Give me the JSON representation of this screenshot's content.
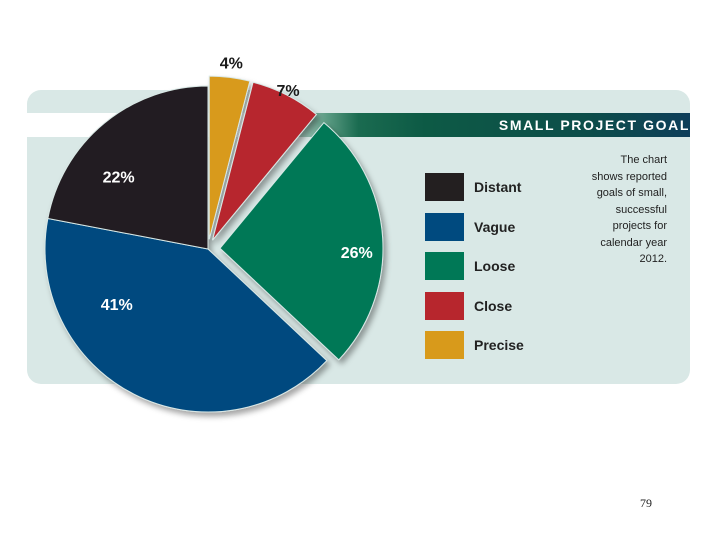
{
  "chart_data": {
    "type": "pie",
    "title": "SMALL PROJECT GOAL",
    "categories": [
      "Distant",
      "Vague",
      "Loose",
      "Close",
      "Precise"
    ],
    "values": [
      22,
      41,
      26,
      7,
      4
    ],
    "value_labels": [
      "22%",
      "41%",
      "26%",
      "7%",
      "4%"
    ],
    "colors": {
      "Distant": "#231f20",
      "Vague": "#004a7f",
      "Loose": "#007856",
      "Close": "#b7262d",
      "Precise": "#d89a1b"
    },
    "legend_position": "center-right",
    "exploded_slices": [
      "Loose",
      "Close",
      "Precise"
    ]
  },
  "note_lines": [
    "The chart",
    "shows reported",
    "goals of small,",
    "successful",
    "projects for",
    "calendar year",
    "2012."
  ],
  "page_number": "79"
}
